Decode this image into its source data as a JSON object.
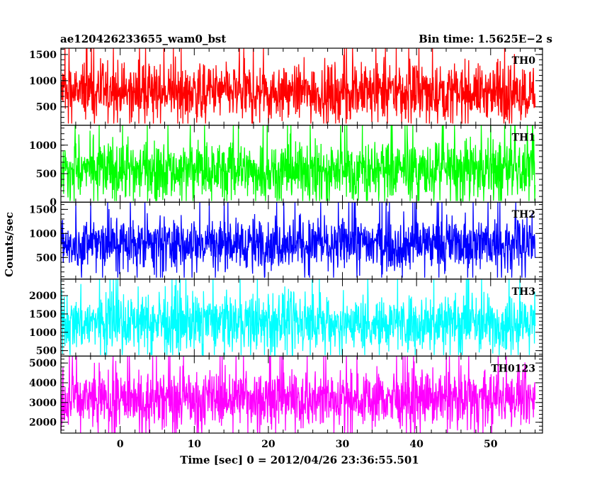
{
  "header": {
    "left": "ae120426233655_wam0_bst",
    "right": "Bin time: 1.5625E−2 s"
  },
  "chart_data": {
    "type": "line",
    "xlabel": "Time [sec] 0 = 2012/04/26 23:36:55.501",
    "ylabel": "Counts/sec",
    "xlim": [
      -8,
      57
    ],
    "x_ticks": [
      0,
      10,
      20,
      30,
      40,
      50
    ],
    "x_start": -8,
    "x_end": 56,
    "bin_time_s": 0.015625,
    "panels": [
      {
        "name": "TH0",
        "color": "#ff0000",
        "ylim": [
          150,
          1620
        ],
        "y_ticks": [
          500,
          1000,
          1500
        ],
        "mean": 780,
        "spread": 270,
        "min": 180,
        "max": 1620
      },
      {
        "name": "TH1",
        "color": "#00ff00",
        "ylim": [
          0,
          1350
        ],
        "y_ticks": [
          0,
          500,
          1000
        ],
        "mean": 560,
        "spread": 260,
        "min": 20,
        "max": 1350
      },
      {
        "name": "TH2",
        "color": "#0000ff",
        "ylim": [
          50,
          1650
        ],
        "y_ticks": [
          500,
          1000,
          1500
        ],
        "mean": 790,
        "spread": 270,
        "min": 80,
        "max": 1650
      },
      {
        "name": "TH3",
        "color": "#00ffff",
        "ylim": [
          350,
          2450
        ],
        "y_ticks": [
          500,
          1000,
          1500,
          2000
        ],
        "mean": 1270,
        "spread": 380,
        "min": 380,
        "max": 2450
      },
      {
        "name": "TH0123",
        "color": "#ff00ff",
        "ylim": [
          1450,
          5350
        ],
        "y_ticks": [
          2000,
          3000,
          4000,
          5000
        ],
        "mean": 3200,
        "spread": 700,
        "min": 1450,
        "max": 5350
      }
    ]
  }
}
